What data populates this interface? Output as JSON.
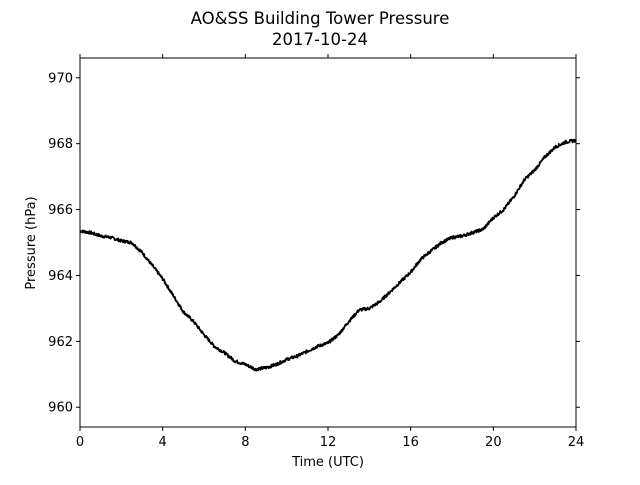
{
  "chart_data": {
    "type": "line",
    "title": "AO&SS Building Tower Pressure",
    "subtitle": "2017-10-24",
    "xlabel": "Time (UTC)",
    "ylabel": "Pressure (hPa)",
    "xlim": [
      0,
      24
    ],
    "ylim": [
      959.4,
      970.6
    ],
    "x_ticks": [
      0,
      4,
      8,
      12,
      16,
      20,
      24
    ],
    "y_ticks": [
      960,
      962,
      964,
      966,
      968,
      970
    ],
    "grid": false,
    "legend": "none",
    "series": [
      {
        "color": "#000000",
        "x": [
          0,
          0.5,
          1,
          1.5,
          2,
          2.5,
          3,
          3.5,
          4,
          4.5,
          5,
          5.5,
          6,
          6.5,
          7,
          7.5,
          8,
          8.5,
          9,
          9.5,
          10,
          10.5,
          11,
          11.5,
          12,
          12.5,
          13,
          13.5,
          14,
          14.5,
          15,
          15.5,
          16,
          16.5,
          17,
          17.5,
          18,
          18.5,
          19,
          19.5,
          20,
          20.5,
          21,
          21.5,
          22,
          22.5,
          23,
          23.5,
          24
        ],
        "y": [
          965.35,
          965.3,
          965.2,
          965.15,
          965.05,
          965.0,
          964.7,
          964.3,
          963.9,
          963.4,
          962.9,
          962.6,
          962.2,
          961.85,
          961.65,
          961.4,
          961.3,
          961.15,
          961.2,
          961.3,
          961.45,
          961.55,
          961.7,
          961.85,
          961.95,
          962.2,
          962.6,
          962.95,
          963.0,
          963.2,
          963.5,
          963.8,
          964.1,
          964.5,
          964.75,
          965.0,
          965.15,
          965.2,
          965.3,
          965.4,
          965.75,
          966.0,
          966.4,
          966.9,
          967.2,
          967.6,
          967.9,
          968.05,
          968.1
        ]
      }
    ]
  }
}
